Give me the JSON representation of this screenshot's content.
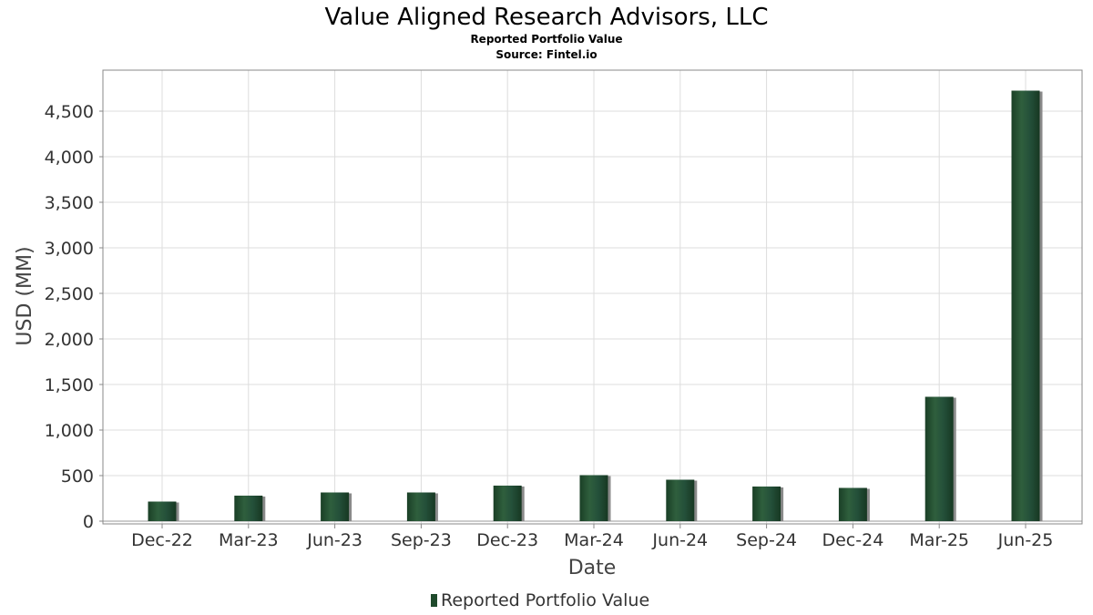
{
  "chart_data": {
    "type": "bar",
    "title": "Value Aligned Research Advisors, LLC",
    "subtitles": [
      "Reported Portfolio Value",
      "Source: Fintel.io"
    ],
    "xlabel": "Date",
    "ylabel": "USD (MM)",
    "categories": [
      "Dec-22",
      "Mar-23",
      "Jun-23",
      "Sep-23",
      "Dec-23",
      "Mar-24",
      "Jun-24",
      "Sep-24",
      "Dec-24",
      "Mar-25",
      "Jun-25"
    ],
    "series": [
      {
        "name": "Reported Portfolio Value",
        "values": [
          215,
          280,
          315,
          315,
          390,
          505,
          455,
          380,
          365,
          1365,
          4725
        ]
      }
    ],
    "ylim": [
      0,
      5000
    ],
    "yticks": [
      0,
      500,
      1000,
      1500,
      2000,
      2500,
      3000,
      3500,
      4000,
      4500
    ],
    "ytick_labels": [
      "0",
      "500",
      "1,000",
      "1,500",
      "2,000",
      "2,500",
      "3,000",
      "3,500",
      "4,000",
      "4,500"
    ],
    "grid": true,
    "legend_position": "bottom-center",
    "colors": {
      "bar": "#1f4a2c",
      "bar_highlight": "#2e5e3c",
      "shadow": "#8a8a8a",
      "legend_marker": "#1f4a2c"
    }
  }
}
